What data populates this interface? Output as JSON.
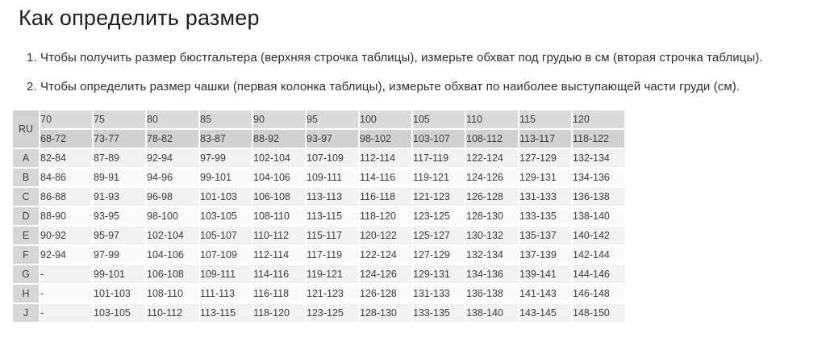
{
  "page": {
    "title": "Как определить размер"
  },
  "instructions": [
    "1. Чтобы получить размер бюстгальтера (верхняя строчка таблицы), измерьте обхват под грудью в см (вторая строчка таблицы).",
    "2. Чтобы определить размер чашки (первая колонка таблицы), измерьте обхват по наиболее выступающей части груди (см)."
  ],
  "table": {
    "corner_label": "RU",
    "band_sizes": [
      "70",
      "75",
      "80",
      "85",
      "90",
      "95",
      "100",
      "105",
      "110",
      "115",
      "120"
    ],
    "underbust_ranges": [
      "68-72",
      "73-77",
      "78-82",
      "83-87",
      "88-92",
      "93-97",
      "98-102",
      "103-107",
      "108-112",
      "113-117",
      "118-122"
    ],
    "rows": [
      {
        "cup": "A",
        "values": [
          "82-84",
          "87-89",
          "92-94",
          "97-99",
          "102-104",
          "107-109",
          "112-114",
          "117-119",
          "122-124",
          "127-129",
          "132-134"
        ]
      },
      {
        "cup": "B",
        "values": [
          "84-86",
          "89-91",
          "94-96",
          "99-101",
          "104-106",
          "109-111",
          "114-116",
          "119-121",
          "124-126",
          "129-131",
          "134-136"
        ]
      },
      {
        "cup": "C",
        "values": [
          "86-88",
          "91-93",
          "96-98",
          "101-103",
          "106-108",
          "113-113",
          "116-118",
          "121-123",
          "126-128",
          "131-133",
          "136-138"
        ]
      },
      {
        "cup": "D",
        "values": [
          "88-90",
          "93-95",
          "98-100",
          "103-105",
          "108-110",
          "113-115",
          "118-120",
          "123-125",
          "128-130",
          "133-135",
          "138-140"
        ]
      },
      {
        "cup": "E",
        "values": [
          "90-92",
          "95-97",
          "102-104",
          "105-107",
          "110-112",
          "115-117",
          "120-122",
          "125-127",
          "130-132",
          "135-137",
          "140-142"
        ]
      },
      {
        "cup": "F",
        "values": [
          "92-94",
          "97-99",
          "104-106",
          "107-109",
          "112-114",
          "117-119",
          "122-124",
          "127-129",
          "132-134",
          "137-139",
          "142-144"
        ]
      },
      {
        "cup": "G",
        "values": [
          "-",
          "99-101",
          "106-108",
          "109-111",
          "114-116",
          "119-121",
          "124-126",
          "129-131",
          "134-136",
          "139-141",
          "144-146"
        ]
      },
      {
        "cup": "H",
        "values": [
          "-",
          "101-103",
          "108-110",
          "111-113",
          "116-118",
          "121-123",
          "126-128",
          "131-133",
          "136-138",
          "141-143",
          "146-148"
        ]
      },
      {
        "cup": "J",
        "values": [
          "-",
          "103-105",
          "110-112",
          "113-115",
          "118-120",
          "123-125",
          "128-130",
          "133-135",
          "138-140",
          "143-145",
          "148-150"
        ]
      }
    ]
  }
}
